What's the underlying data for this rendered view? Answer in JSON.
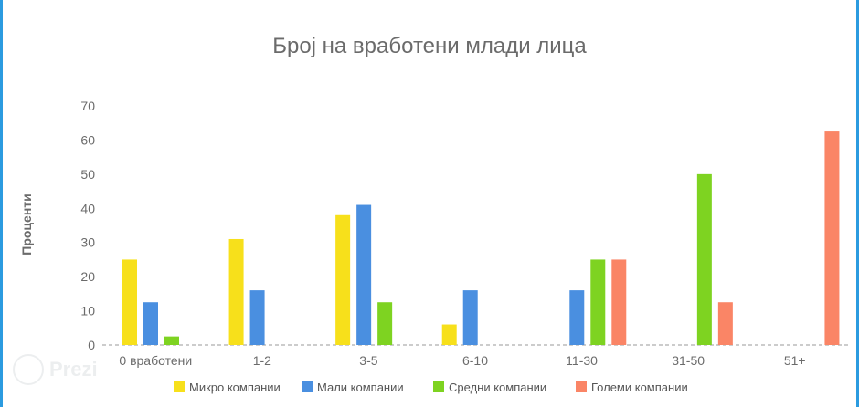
{
  "chart_data": {
    "type": "bar",
    "title": "Број на вработени млади лица",
    "ylabel": "Проценти",
    "xlabel": "",
    "categories": [
      "0 вработени",
      "1-2",
      "3-5",
      "6-10",
      "11-30",
      "31-50",
      "51+"
    ],
    "series": [
      {
        "name": "Микро компании",
        "color": "#f7e01b",
        "values": [
          25,
          31,
          38,
          6,
          null,
          null,
          null
        ]
      },
      {
        "name": "Мали компании",
        "color": "#4a8fe0",
        "values": [
          12.5,
          16,
          41,
          16,
          16,
          null,
          null
        ]
      },
      {
        "name": "Средни компании",
        "color": "#7ed321",
        "values": [
          2.5,
          null,
          12.5,
          null,
          25,
          50,
          null
        ]
      },
      {
        "name": "Големи компании",
        "color": "#fa8566",
        "values": [
          null,
          null,
          null,
          null,
          25,
          12.5,
          62.5
        ]
      }
    ],
    "ylim": [
      0,
      70
    ],
    "yticks": [
      0,
      10,
      20,
      30,
      40,
      50,
      60,
      70
    ],
    "grid": false,
    "legend_position": "bottom"
  },
  "watermark": "Prezi"
}
